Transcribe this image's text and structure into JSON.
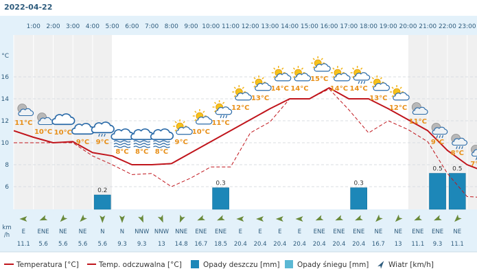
{
  "header": {
    "date": "2022-04-22"
  },
  "legend": {
    "temperature": "Temperatura [°C]",
    "feels_like": "Temp. odczuwalna [°C]",
    "rain": "Opady deszczu [mm]",
    "snow": "Opady śniegu [mm]",
    "wind": "Wiatr [km/h]"
  },
  "units": {
    "temp": "°C",
    "wind_km": "km",
    "wind_h": "/h"
  },
  "colors": {
    "temperature": "#c0141b",
    "feels_like": "#c0141b",
    "rain": "#1d87b8",
    "snow": "#5bb8d4",
    "header_bg": "#e3f1fa",
    "text": "#2d5b7c",
    "temp_label": "#e8901a"
  },
  "chart_data": {
    "type": "line",
    "hours": [
      "1:00",
      "2:00",
      "3:00",
      "4:00",
      "5:00",
      "6:00",
      "7:00",
      "8:00",
      "9:00",
      "10:00",
      "11:00",
      "12:00",
      "13:00",
      "14:00",
      "15:00",
      "16:00",
      "17:00",
      "18:00",
      "19:00",
      "20:00",
      "21:00",
      "22:00",
      "23:00"
    ],
    "ylim": [
      4,
      18
    ],
    "yticks": [
      6,
      8,
      10,
      12,
      14,
      16
    ],
    "grid": true,
    "legend_position": "bottom",
    "series": [
      {
        "name": "Temperatura [°C]",
        "x": [
          0,
          1,
          2,
          3,
          4,
          5,
          6,
          7,
          8,
          9,
          10,
          11,
          12,
          13,
          14,
          15,
          16,
          17,
          18,
          19,
          20,
          21,
          22,
          23,
          24
        ],
        "values": [
          11.1,
          10.5,
          10,
          10.1,
          9.1,
          8.8,
          8.0,
          8.0,
          8.1,
          9.1,
          10.1,
          11.1,
          12.1,
          13.1,
          14.0,
          14.0,
          15.0,
          14.0,
          14.0,
          13.1,
          12.1,
          11.1,
          9.3,
          8.0,
          7.3
        ]
      },
      {
        "name": "Temp. odczuwalna [°C]",
        "x": [
          0,
          1,
          2,
          3,
          4,
          5,
          6,
          7,
          8,
          9,
          10,
          11,
          12,
          13,
          14,
          15,
          16,
          17,
          18,
          19,
          20,
          21,
          22,
          23,
          24
        ],
        "values": [
          10,
          10,
          10,
          10,
          8.8,
          8.0,
          7.1,
          7.2,
          6.0,
          6.8,
          7.8,
          7.8,
          10.9,
          11.9,
          14.0,
          14.0,
          14.9,
          13.0,
          10.9,
          12.0,
          11.2,
          10.1,
          7.2,
          5.1,
          5.0
        ]
      }
    ],
    "icons": [
      "moon-cloud-icon",
      "moon-cloud-icon",
      "cloud-icon",
      "cloud-icon",
      "cloud-rain-icon",
      "cloud-fog-icon",
      "cloud-fog-icon",
      "cloud-fog-icon",
      "sun-cloud-icon",
      "sun-cloud-icon",
      "sun-cloud-rain-icon",
      "sun-cloud-icon",
      "sun-cloud-icon",
      "sun-cloud-icon",
      "sun-cloud-icon",
      "sun-cloud-icon",
      "sun-cloud-icon",
      "sun-cloud-rain-icon",
      "sun-cloud-icon",
      "sun-cloud-icon",
      "moon-cloud-icon",
      "moon-cloud-rain-icon",
      "moon-cloud-rain-icon",
      "moon-cloud-rain-icon"
    ],
    "icon_temps": [
      "11°C",
      "10°C",
      "10°C",
      "9°C",
      "9°C",
      "8°C",
      "8°C",
      "8°C",
      "9°C",
      "10°C",
      "11°C",
      "12°C",
      "13°C",
      "14°C",
      "14°C",
      "15°C",
      "14°C",
      "14°C",
      "13°C",
      "12°C",
      "11°C",
      "9°C",
      "8°C",
      "7°C"
    ],
    "rain_bars": [
      {
        "hour_index": 4,
        "value": 0.2,
        "label": "0.2"
      },
      {
        "hour_index": 10,
        "value": 0.3,
        "label": "0.3"
      },
      {
        "hour_index": 17,
        "value": 0.3,
        "label": "0.3"
      },
      {
        "hour_index": 21,
        "value": 0.5,
        "label": "0.5"
      },
      {
        "hour_index": 22,
        "value": 0.5,
        "label": "0.5"
      }
    ],
    "wind_direction": [
      "E",
      "ENE",
      "NE",
      "NE",
      "N",
      "N",
      "NNW",
      "NNW",
      "NNE",
      "ENE",
      "ENE",
      "E",
      "E",
      "E",
      "E",
      "ENE",
      "ENE",
      "ENE",
      "NE",
      "NE",
      "ENE",
      "ENE",
      "NE",
      "NE"
    ],
    "wind_speed": [
      "11.1",
      "5.6",
      "5.6",
      "5.6",
      "5.6",
      "9.3",
      "9.3",
      "13",
      "14.8",
      "16.7",
      "18.5",
      "20.4",
      "20.4",
      "20.4",
      "20.4",
      "20.4",
      "20.4",
      "20.4",
      "16.7",
      "13",
      "11.1",
      "9.3",
      "11.1",
      "11.1"
    ]
  }
}
